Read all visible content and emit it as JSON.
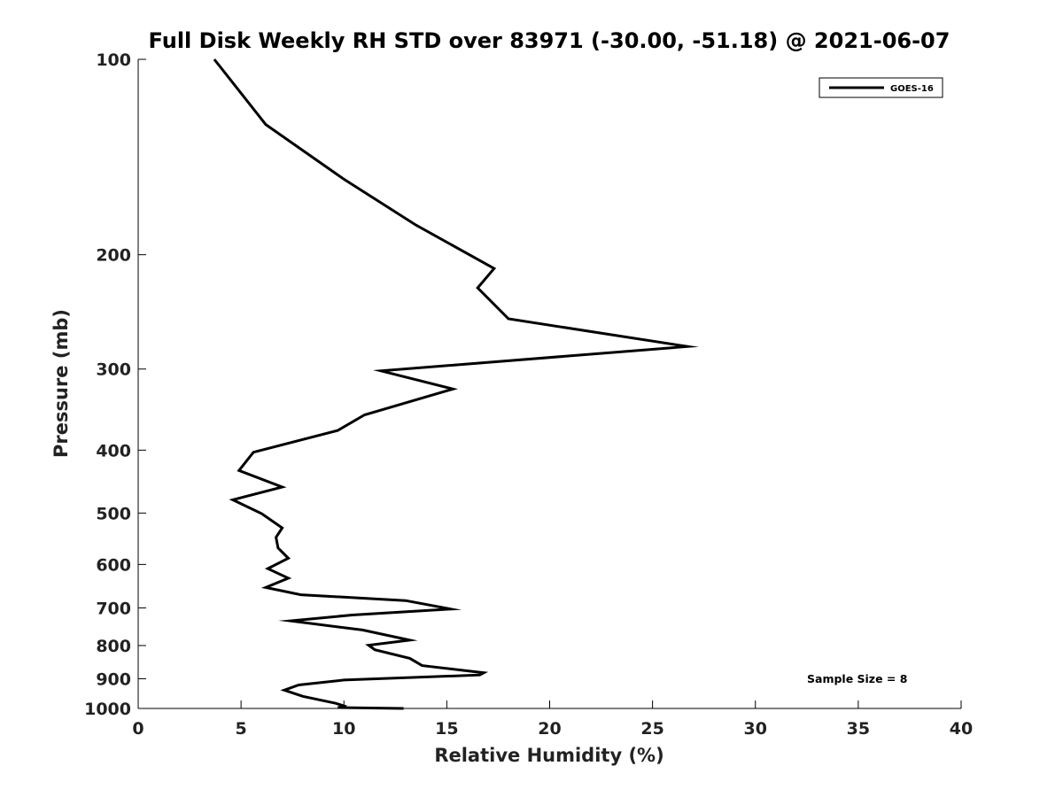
{
  "chart_data": {
    "type": "line",
    "title": "Full Disk Weekly RH STD over 83971 (-30.00, -51.18) @ 2021-06-07",
    "xlabel": "Relative Humidity (%)",
    "ylabel": "Pressure (mb)",
    "xlim": [
      0,
      40
    ],
    "ylim": [
      100,
      1000
    ],
    "y_scale": "log",
    "y_reversed": true,
    "x_ticks": [
      0,
      5,
      10,
      15,
      20,
      25,
      30,
      35,
      40
    ],
    "y_ticks": [
      100,
      200,
      300,
      400,
      500,
      600,
      700,
      800,
      900,
      1000
    ],
    "grid": false,
    "legend_position": "top-right",
    "annotation": "Sample Size = 8",
    "line_color": "#000000",
    "series": [
      {
        "name": "GOES-16",
        "points": [
          [
            3.7,
            100
          ],
          [
            6.2,
            126
          ],
          [
            10.0,
            153
          ],
          [
            13.5,
            180
          ],
          [
            17.3,
            210
          ],
          [
            16.5,
            225
          ],
          [
            18.0,
            251
          ],
          [
            26.7,
            277
          ],
          [
            11.8,
            302
          ],
          [
            15.3,
            322
          ],
          [
            11.0,
            353
          ],
          [
            9.7,
            373
          ],
          [
            5.6,
            403
          ],
          [
            4.9,
            430
          ],
          [
            7.0,
            456
          ],
          [
            4.6,
            477
          ],
          [
            6.0,
            501
          ],
          [
            7.0,
            527
          ],
          [
            6.7,
            545
          ],
          [
            6.8,
            566
          ],
          [
            7.3,
            587
          ],
          [
            6.3,
            609
          ],
          [
            7.3,
            630
          ],
          [
            6.2,
            651
          ],
          [
            7.9,
            668
          ],
          [
            13.0,
            682
          ],
          [
            15.2,
            703
          ],
          [
            10.4,
            718
          ],
          [
            7.4,
            733
          ],
          [
            10.9,
            757
          ],
          [
            13.2,
            785
          ],
          [
            11.2,
            799
          ],
          [
            11.5,
            812
          ],
          [
            13.2,
            837
          ],
          [
            13.8,
            859
          ],
          [
            16.8,
            881
          ],
          [
            16.6,
            888
          ],
          [
            10.0,
            904
          ],
          [
            7.8,
            920
          ],
          [
            7.1,
            937
          ],
          [
            8.0,
            958
          ],
          [
            9.6,
            982
          ],
          [
            10.0,
            991
          ],
          [
            9.9,
            995
          ],
          [
            9.7,
            997
          ],
          [
            12.9,
            1000
          ]
        ]
      }
    ]
  }
}
